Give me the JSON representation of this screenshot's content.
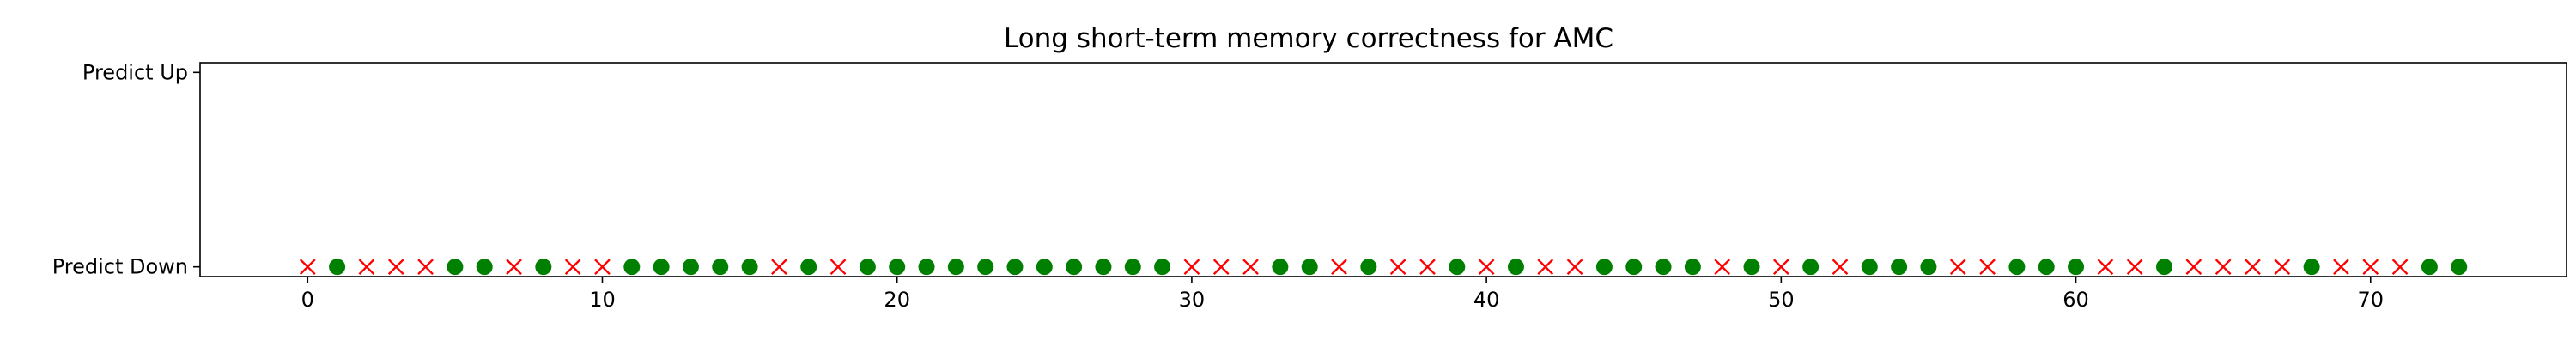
{
  "chart_data": {
    "type": "scatter",
    "title": "Long short-term memory correctness for AMC",
    "xlabel": "",
    "ylabel": "",
    "xlim": [
      -3.65,
      76.65
    ],
    "ylim": [
      -0.05,
      1.05
    ],
    "x_ticks": [
      0,
      10,
      20,
      30,
      40,
      50,
      60,
      70
    ],
    "y_ticks": [
      {
        "value": 1,
        "label": "Predict Up"
      },
      {
        "value": 0,
        "label": "Predict Down"
      }
    ],
    "grid": false,
    "legend": "none",
    "y": [
      0,
      0,
      0,
      0,
      0,
      0,
      0,
      0,
      0,
      0,
      0,
      0,
      0,
      0,
      0,
      0,
      0,
      0,
      0,
      0,
      0,
      0,
      0,
      0,
      0,
      0,
      0,
      0,
      0,
      0,
      0,
      0,
      0,
      0,
      0,
      0,
      0,
      0,
      0,
      0,
      0,
      0,
      0,
      0,
      0,
      0,
      0,
      0,
      0,
      0,
      0,
      0,
      0,
      0,
      0,
      0,
      0,
      0,
      0,
      0,
      0,
      0,
      0,
      0,
      0,
      0,
      0,
      0,
      0,
      0,
      0,
      0,
      0,
      0
    ],
    "correct": [
      false,
      true,
      false,
      false,
      false,
      true,
      true,
      false,
      true,
      false,
      false,
      true,
      true,
      true,
      true,
      true,
      false,
      true,
      false,
      true,
      true,
      true,
      true,
      true,
      true,
      true,
      true,
      true,
      true,
      true,
      false,
      false,
      false,
      true,
      true,
      false,
      true,
      false,
      false,
      true,
      false,
      true,
      false,
      false,
      true,
      true,
      true,
      true,
      false,
      true,
      false,
      true,
      false,
      true,
      true,
      true,
      false,
      false,
      true,
      true,
      true,
      false,
      false,
      true,
      false,
      false,
      false,
      false,
      true,
      false,
      false,
      false,
      true,
      true
    ],
    "colors": {
      "correct": "#008000",
      "incorrect": "#ff0000",
      "axis": "#000000"
    }
  }
}
